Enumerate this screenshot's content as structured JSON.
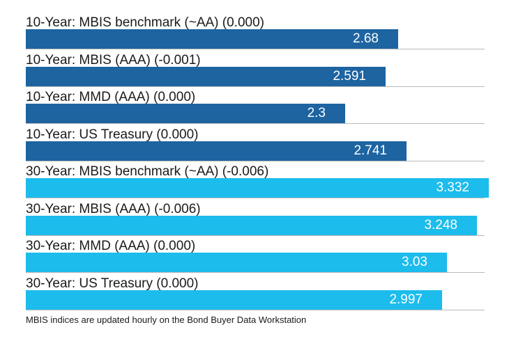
{
  "chart_data": {
    "type": "bar",
    "orientation": "horizontal",
    "categories": [
      "10-Year: MBIS benchmark (~AA) (0.000)",
      "10-Year: MBIS (AAA) (-0.001)",
      "10-Year: MMD (AAA) (0.000)",
      "10-Year: US Treasury (0.000)",
      "30-Year: MBIS benchmark (~AA) (-0.006)",
      "30-Year: MBIS (AAA) (-0.006)",
      "30-Year: MMD (AAA) (0.000)",
      "30-Year: US Treasury (0.000)"
    ],
    "values": [
      2.68,
      2.591,
      2.3,
      2.741,
      3.332,
      3.248,
      3.03,
      2.997
    ],
    "value_labels": [
      "2.68",
      "2.591",
      "2.3",
      "2.741",
      "3.332",
      "3.248",
      "3.03",
      "2.997"
    ],
    "colors": [
      "#1d64a1",
      "#1d64a1",
      "#1d64a1",
      "#1d64a1",
      "#1cbcec",
      "#1cbcec",
      "#1cbcec",
      "#1cbcec"
    ],
    "xlim": [
      0,
      3.332
    ],
    "title": "",
    "xlabel": "",
    "ylabel": "",
    "grid": false,
    "legend": "none",
    "footnote": "MBIS indices are updated hourly on the Bond Buyer Data Workstation"
  }
}
